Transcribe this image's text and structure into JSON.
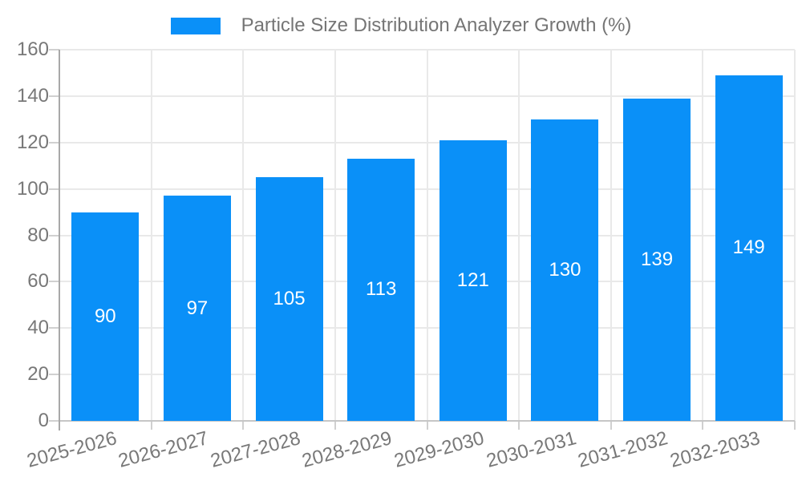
{
  "legend": {
    "label": "Particle Size Distribution Analyzer Growth (%)"
  },
  "chart_data": {
    "type": "bar",
    "title": "Particle Size Distribution Analyzer Growth (%)",
    "categories": [
      "2025-2026",
      "2026-2027",
      "2027-2028",
      "2028-2029",
      "2029-2030",
      "2030-2031",
      "2031-2032",
      "2032-2033"
    ],
    "values": [
      90,
      97,
      105,
      113,
      121,
      130,
      139,
      149
    ],
    "xlabel": "",
    "ylabel": "",
    "ylim": [
      0,
      160
    ],
    "yticks": [
      0,
      20,
      40,
      60,
      80,
      100,
      120,
      140,
      160
    ],
    "grid": true,
    "legend_position": "top-center",
    "x_tick_rotation_deg": -15,
    "colors": {
      "bar": "#0a90f8",
      "bar_label": "#ffffff",
      "axis_label": "#787878",
      "legend_text": "#757575",
      "grid_line": "#e9e9e9",
      "baseline": "#c6c6c6",
      "axis_line": "#a8a8a8",
      "tick": "#d0d0d0",
      "background": "#ffffff"
    }
  }
}
